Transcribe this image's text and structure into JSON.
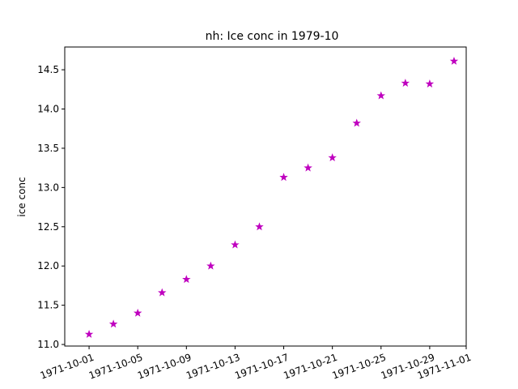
{
  "chart_data": {
    "type": "scatter",
    "title": "nh: Ice conc in 1979-10",
    "xlabel": "",
    "ylabel": "ice conc",
    "marker": "star",
    "marker_color": "#bf00bf",
    "xlim": [
      "1971-09-29",
      "1971-11-01"
    ],
    "ylim": [
      10.98,
      14.79
    ],
    "x_ticks": [
      "1971-10-01",
      "1971-10-05",
      "1971-10-09",
      "1971-10-13",
      "1971-10-17",
      "1971-10-21",
      "1971-10-25",
      "1971-10-29",
      "1971-11-01"
    ],
    "y_ticks": [
      "11.0",
      "11.5",
      "12.0",
      "12.5",
      "13.0",
      "13.5",
      "14.0",
      "14.5"
    ],
    "grid": false,
    "points": [
      {
        "x": "1971-10-01",
        "y": 11.13
      },
      {
        "x": "1971-10-03",
        "y": 11.26
      },
      {
        "x": "1971-10-05",
        "y": 11.4
      },
      {
        "x": "1971-10-07",
        "y": 11.66
      },
      {
        "x": "1971-10-09",
        "y": 11.83
      },
      {
        "x": "1971-10-11",
        "y": 12.0
      },
      {
        "x": "1971-10-13",
        "y": 12.27
      },
      {
        "x": "1971-10-15",
        "y": 12.5
      },
      {
        "x": "1971-10-17",
        "y": 13.13
      },
      {
        "x": "1971-10-19",
        "y": 13.25
      },
      {
        "x": "1971-10-21",
        "y": 13.38
      },
      {
        "x": "1971-10-23",
        "y": 13.82
      },
      {
        "x": "1971-10-25",
        "y": 14.17
      },
      {
        "x": "1971-10-27",
        "y": 14.33
      },
      {
        "x": "1971-10-29",
        "y": 14.32
      },
      {
        "x": "1971-10-31",
        "y": 14.61
      }
    ]
  }
}
